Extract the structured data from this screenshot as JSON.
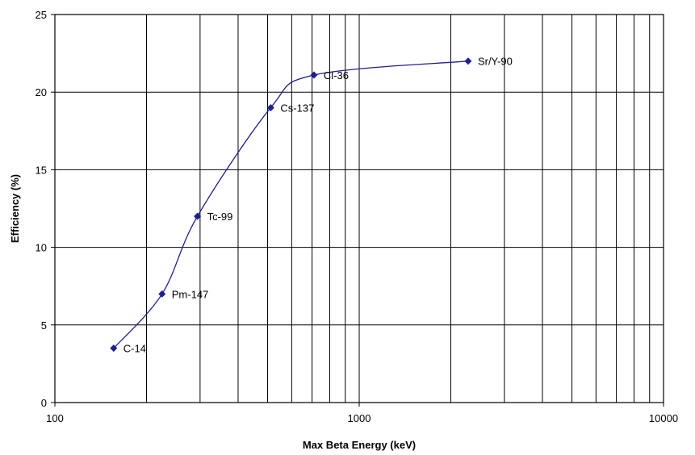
{
  "chart_data": {
    "type": "scatter",
    "xlabel": "Max Beta Energy (keV)",
    "ylabel": "Efficiency (%)",
    "x_scale": "log",
    "xlim": [
      100,
      10000
    ],
    "ylim": [
      0,
      25
    ],
    "x_ticks": [
      100,
      1000,
      10000
    ],
    "x_tick_labels": [
      "100",
      "1000",
      "10000"
    ],
    "y_ticks": [
      0,
      5,
      10,
      15,
      20,
      25
    ],
    "y_tick_labels": [
      "0",
      "5",
      "10",
      "15",
      "20",
      "25"
    ],
    "grid": true,
    "legend": "none",
    "line_style": "smoothed",
    "colors": {
      "series": "#1f1f8f",
      "grid": "#000000"
    },
    "points": [
      {
        "label": "C-14",
        "x": 156,
        "y": 3.5
      },
      {
        "label": "Pm-147",
        "x": 225,
        "y": 7.0
      },
      {
        "label": "Tc-99",
        "x": 294,
        "y": 12.0
      },
      {
        "label": "Cs-137",
        "x": 512,
        "y": 19.0
      },
      {
        "label": "Cl-36",
        "x": 710,
        "y": 21.1
      },
      {
        "label": "Sr/Y-90",
        "x": 2280,
        "y": 22.0
      }
    ]
  }
}
